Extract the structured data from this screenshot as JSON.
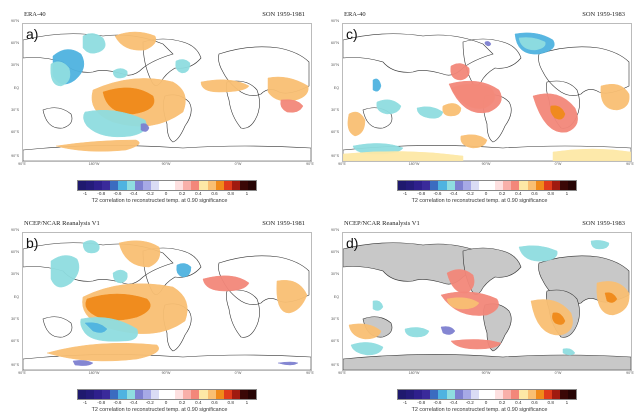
{
  "chart_data": [
    {
      "type": "heatmap",
      "panel_label": "a)",
      "title_left": "ERA-40",
      "title_right": "SON 1959-1981",
      "land_shaded": false,
      "caption": "T2 correlation to reconstructed temp. at 0.90 significance"
    },
    {
      "type": "heatmap",
      "panel_label": "c)",
      "title_left": "ERA-40",
      "title_right": "SON 1959-1983",
      "land_shaded": false,
      "caption": "T2 correlation to reconstructed temp. at 0.90 significance"
    },
    {
      "type": "heatmap",
      "panel_label": "b)",
      "title_left": "NCEP/NCAR Reanalysis V1",
      "title_right": "SON 1959-1981",
      "land_shaded": false,
      "caption": "T2 correlation to reconstructed temp. at 0.90 significance"
    },
    {
      "type": "heatmap",
      "panel_label": "d)",
      "title_left": "NCEP/NCAR Reanalysis V1",
      "title_right": "SON 1959-1983",
      "land_shaded": true,
      "caption": "T2 correlation to reconstructed temp. at 0.90 significance"
    }
  ],
  "axes": {
    "y_ticks": [
      "90°N",
      "60°N",
      "30°N",
      "EQ",
      "30°S",
      "60°S",
      "90°S"
    ],
    "x_ticks": [
      "90°E",
      "180°W",
      "90°W",
      "0°W",
      "90°E"
    ]
  },
  "colorbar": {
    "ticks": [
      "-1",
      "-0.8",
      "-0.6",
      "-0.4",
      "-0.2",
      "0",
      "0.2",
      "0.4",
      "0.6",
      "0.8",
      "1"
    ],
    "range": [
      -1,
      1
    ],
    "colors": [
      "#1f1a6e",
      "#241c7a",
      "#2e208c",
      "#3a2a9a",
      "#3b6cc0",
      "#4fb3e0",
      "#8fdde0",
      "#7e80d0",
      "#a7a9e6",
      "#dadcf5",
      "#ffffff",
      "#ffffff",
      "#fde0e0",
      "#f8b0aa",
      "#f3877a",
      "#fde8a6",
      "#f9bf73",
      "#f08a1a",
      "#e03a1a",
      "#a01a10",
      "#3a0806",
      "#260404"
    ]
  },
  "colors": {
    "neg_light": "#8fdde0",
    "neg_mid": "#4fb3e0",
    "neg_purple": "#7e80d0",
    "pos_pink": "#f3877a",
    "pos_yellow": "#fde8a6",
    "pos_orange": "#f9bf73",
    "pos_dark_orange": "#f08a1a",
    "land_gray": "#c8c8c8"
  }
}
